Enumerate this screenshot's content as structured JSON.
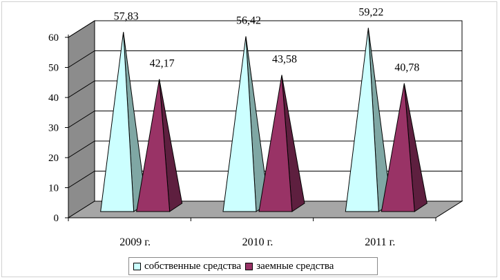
{
  "chart_data": {
    "type": "bar",
    "style": "3d-pyramid",
    "categories": [
      "2009 г.",
      "2010 г.",
      "2011 г."
    ],
    "series": [
      {
        "name": "собственные средства",
        "values": [
          57.83,
          56.42,
          59.22
        ],
        "value_labels": [
          "57,83",
          "56,42",
          "59,22"
        ],
        "color": "#ccffff",
        "shade": "#7fa7a4"
      },
      {
        "name": "заемные средства",
        "values": [
          42.17,
          43.58,
          40.78
        ],
        "value_labels": [
          "42,17",
          "43,58",
          "40,78"
        ],
        "color": "#993366",
        "shade": "#5e1f3f"
      }
    ],
    "ylim": [
      0,
      60
    ],
    "yticks": [
      "0",
      "10",
      "20",
      "30",
      "40",
      "50",
      "60"
    ],
    "grid": true,
    "legend_position": "bottom"
  }
}
